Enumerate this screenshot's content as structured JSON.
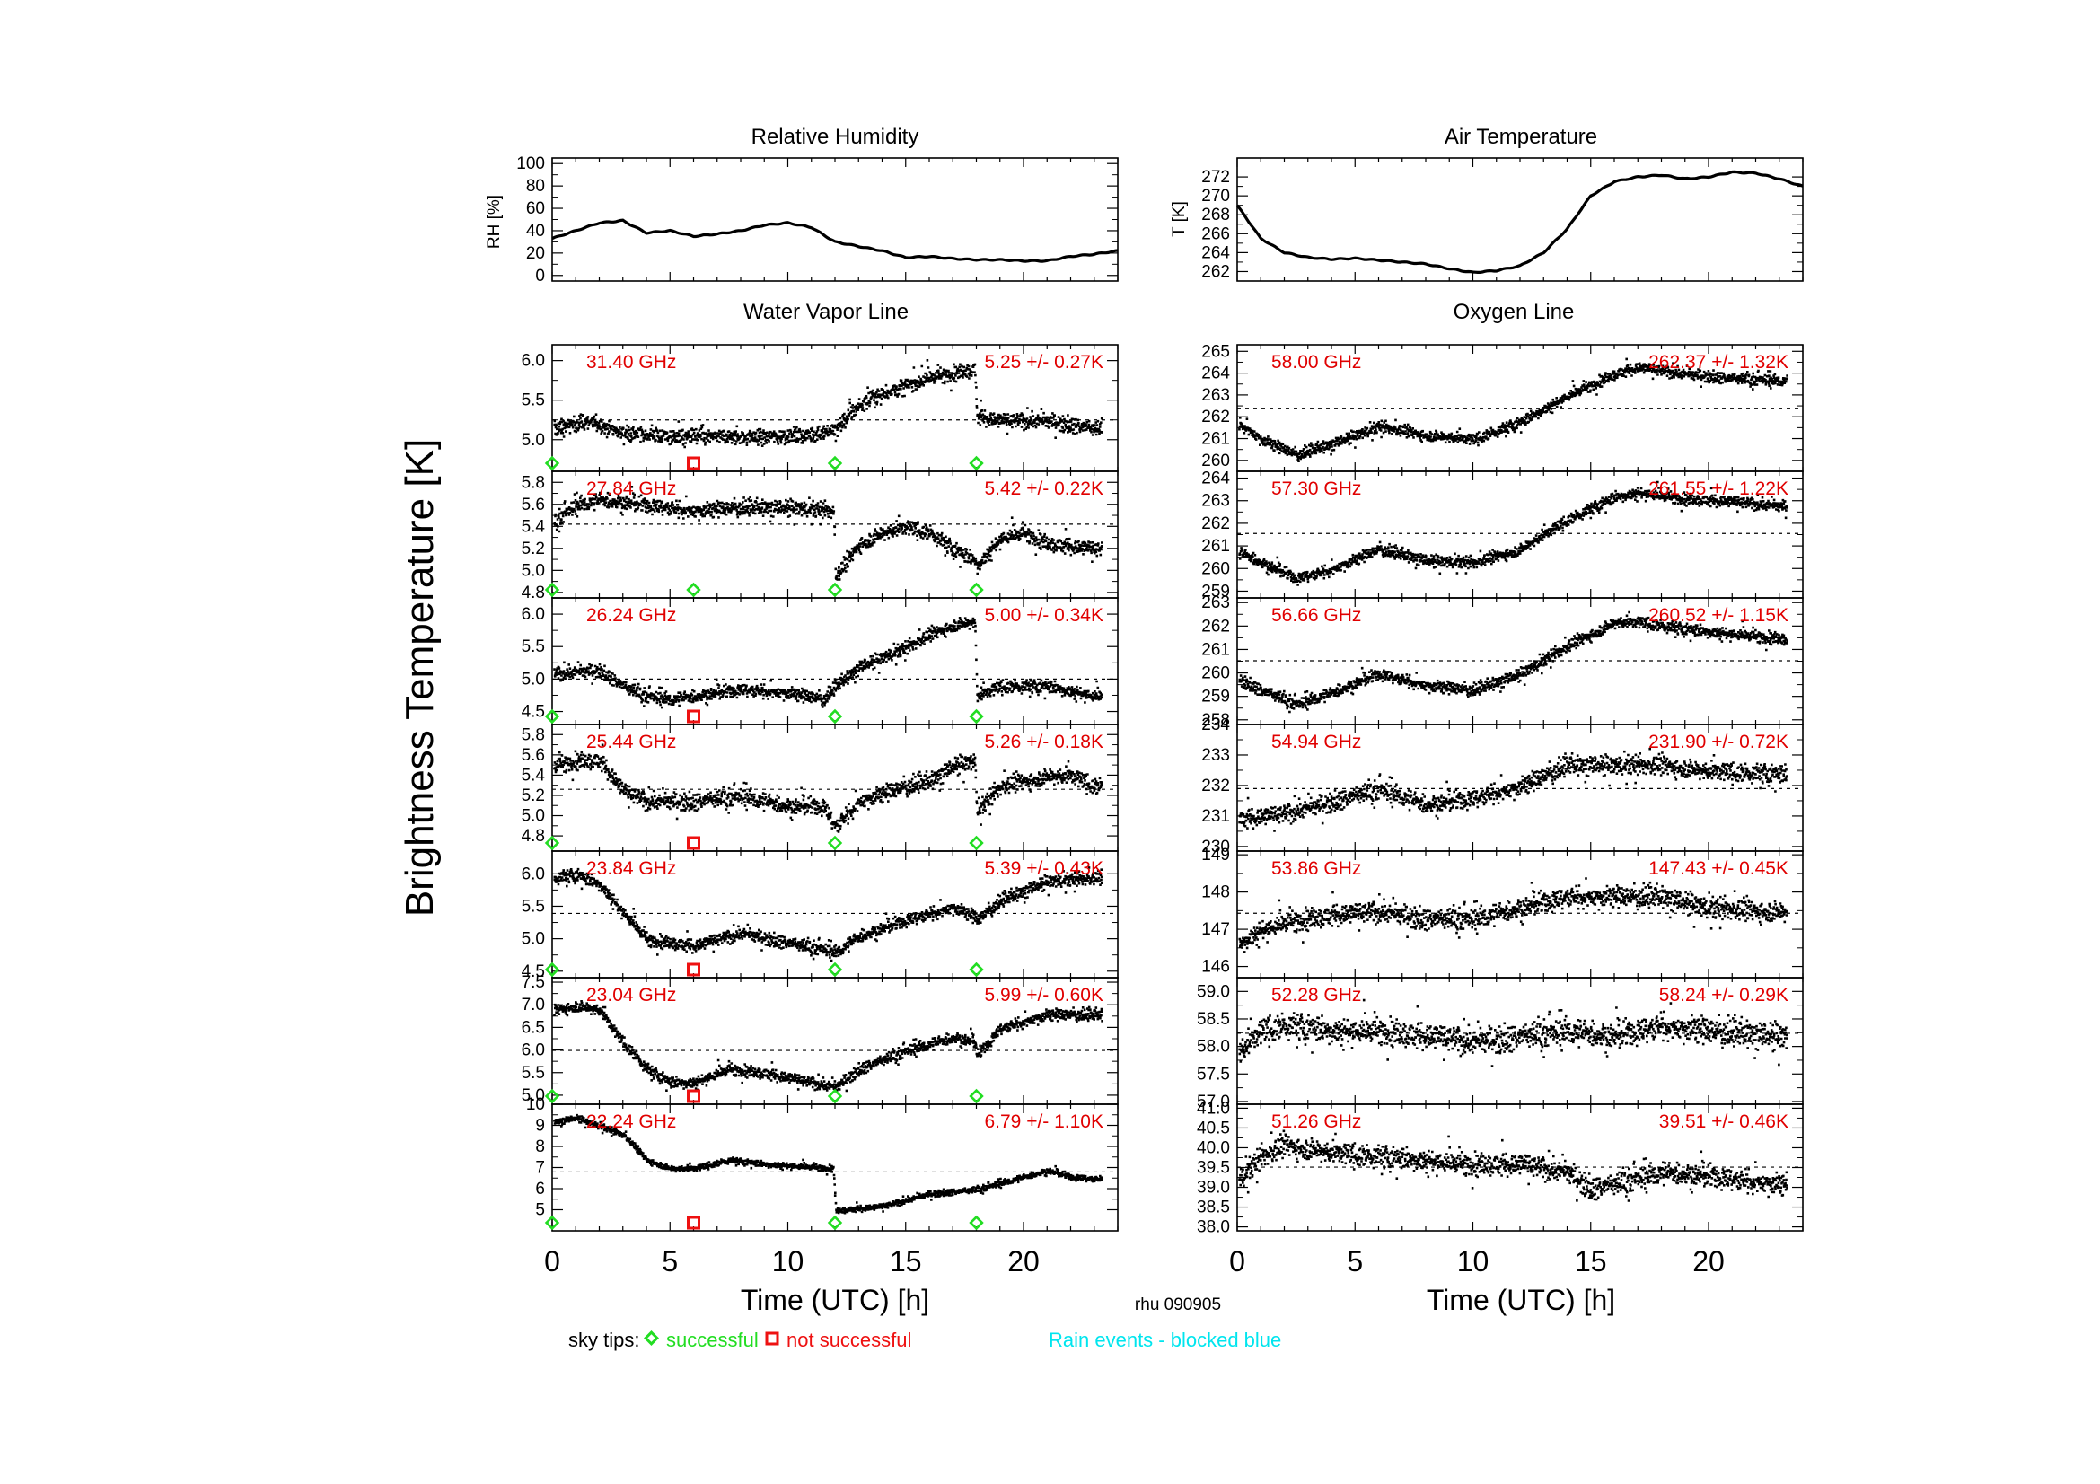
{
  "station_label": "rhu 090905",
  "y_axis_label": "Brightness Temperature [K]",
  "x_axis": {
    "label": "Time (UTC) [h]",
    "range": [
      0,
      24
    ],
    "ticks": [
      0,
      5,
      10,
      15,
      20
    ]
  },
  "legend": {
    "sky_tips_label": "sky tips:",
    "successful_label": "successful",
    "not_successful_label": "not successful",
    "rain_label": "Rain events - blocked blue",
    "successful_color": "#22dd22",
    "not_successful_color": "#ee1111",
    "rain_color": "#00e5ee"
  },
  "colors": {
    "annotation": "#e00000",
    "data": "#000000"
  },
  "chart_data": [
    {
      "id": "rh",
      "type": "line",
      "title": "Relative Humidity",
      "ylabel": "RH [%]",
      "ylim": [
        -5,
        105
      ],
      "yticks": [
        0,
        20,
        40,
        60,
        80,
        100
      ],
      "x": [
        0,
        1,
        2,
        3,
        4,
        5,
        6,
        7,
        8,
        9,
        10,
        11,
        12,
        13,
        14,
        15,
        16,
        17,
        18,
        19,
        20,
        21,
        22,
        23,
        24
      ],
      "y": [
        33,
        40,
        47,
        49,
        38,
        40,
        35,
        37,
        40,
        45,
        47,
        43,
        30,
        26,
        22,
        16,
        17,
        15,
        14,
        14,
        13,
        13,
        17,
        19,
        22
      ]
    },
    {
      "id": "t",
      "type": "line",
      "title": "Air Temperature",
      "ylabel": "T [K]",
      "ylim": [
        261,
        274
      ],
      "yticks": [
        262,
        264,
        266,
        268,
        270,
        272
      ],
      "x": [
        0,
        1,
        2,
        3,
        4,
        5,
        6,
        7,
        8,
        9,
        10,
        11,
        12,
        13,
        14,
        15,
        16,
        17,
        18,
        19,
        20,
        21,
        22,
        23,
        24
      ],
      "y": [
        269,
        265.5,
        264,
        263.5,
        263.3,
        263.4,
        263.2,
        263.0,
        262.8,
        262.3,
        261.9,
        262.1,
        262.6,
        264.0,
        266.5,
        270.0,
        271.5,
        272.0,
        272.2,
        271.8,
        272.0,
        272.5,
        272.4,
        271.8,
        271.0
      ]
    },
    {
      "id": "wv1",
      "type": "scatter",
      "group": "Water Vapor Line",
      "freq": "31.40 GHz",
      "stat": "5.25 +/-  0.27K",
      "mean": 5.25,
      "ylim": [
        4.6,
        6.2
      ],
      "yticks": [
        5.0,
        5.5,
        6.0
      ],
      "tick_dec": 1,
      "x": [
        0,
        1.5,
        3,
        5,
        7,
        9,
        11,
        12,
        13,
        14,
        15,
        16,
        17,
        17.9,
        18,
        19,
        21,
        23
      ],
      "y": [
        5.15,
        5.25,
        5.1,
        5.05,
        5.05,
        5.05,
        5.08,
        5.15,
        5.45,
        5.6,
        5.7,
        5.8,
        5.85,
        5.9,
        5.3,
        5.25,
        5.25,
        5.15
      ],
      "noise": 0.07,
      "gaps": [],
      "tips": [
        {
          "x": 0,
          "ok": true
        },
        {
          "x": 6,
          "ok": false
        },
        {
          "x": 12,
          "ok": true
        },
        {
          "x": 18,
          "ok": true
        }
      ]
    },
    {
      "id": "wv2",
      "type": "scatter",
      "group": "Water Vapor Line",
      "freq": "27.84 GHz",
      "stat": "5.42 +/-  0.22K",
      "mean": 5.42,
      "ylim": [
        4.75,
        5.9
      ],
      "yticks": [
        4.8,
        5.0,
        5.2,
        5.4,
        5.6,
        5.8
      ],
      "tick_dec": 1,
      "x": [
        0,
        1,
        2,
        4,
        6,
        8,
        10,
        11.9,
        12,
        13,
        14,
        15,
        16,
        17,
        17.9,
        18,
        19,
        20,
        21,
        23
      ],
      "y": [
        5.45,
        5.6,
        5.65,
        5.6,
        5.55,
        5.58,
        5.58,
        5.55,
        4.95,
        5.25,
        5.35,
        5.4,
        5.35,
        5.2,
        5.1,
        5.05,
        5.3,
        5.35,
        5.25,
        5.2
      ],
      "noise": 0.05,
      "gaps": [],
      "tips": [
        {
          "x": 0,
          "ok": true
        },
        {
          "x": 6,
          "ok": true
        },
        {
          "x": 12,
          "ok": true
        },
        {
          "x": 18,
          "ok": true
        }
      ]
    },
    {
      "id": "wv3",
      "type": "scatter",
      "group": "Water Vapor Line",
      "freq": "26.24 GHz",
      "stat": "5.00 +/-  0.34K",
      "mean": 5.0,
      "ylim": [
        4.3,
        6.25
      ],
      "yticks": [
        4.5,
        5.0,
        5.5,
        6.0
      ],
      "tick_dec": 1,
      "x": [
        0,
        2,
        3,
        4,
        5,
        6,
        8,
        10,
        11.5,
        12,
        13,
        15,
        16,
        17,
        17.9,
        18,
        19,
        21,
        23
      ],
      "y": [
        5.1,
        5.15,
        4.9,
        4.75,
        4.7,
        4.75,
        4.85,
        4.8,
        4.7,
        4.9,
        5.2,
        5.5,
        5.7,
        5.85,
        5.9,
        4.75,
        4.9,
        4.9,
        4.75
      ],
      "noise": 0.07,
      "gaps": [],
      "tips": [
        {
          "x": 0,
          "ok": true
        },
        {
          "x": 6,
          "ok": false
        },
        {
          "x": 12,
          "ok": true
        },
        {
          "x": 18,
          "ok": true
        }
      ]
    },
    {
      "id": "wv4",
      "type": "scatter",
      "group": "Water Vapor Line",
      "freq": "25.44 GHz",
      "stat": "5.26 +/-  0.18K",
      "mean": 5.26,
      "ylim": [
        4.65,
        5.9
      ],
      "yticks": [
        4.8,
        5.0,
        5.2,
        5.4,
        5.6,
        5.8
      ],
      "tick_dec": 1,
      "x": [
        0,
        1,
        2,
        3,
        4,
        6,
        8,
        10,
        11.5,
        12,
        13,
        15,
        16,
        17,
        17.9,
        18,
        19,
        21,
        22,
        23
      ],
      "y": [
        5.5,
        5.55,
        5.55,
        5.25,
        5.15,
        5.15,
        5.2,
        5.1,
        5.1,
        4.9,
        5.15,
        5.3,
        5.35,
        5.5,
        5.55,
        5.05,
        5.3,
        5.4,
        5.4,
        5.3
      ],
      "noise": 0.06,
      "gaps": [],
      "tips": [
        {
          "x": 0,
          "ok": true
        },
        {
          "x": 6,
          "ok": false
        },
        {
          "x": 12,
          "ok": true
        },
        {
          "x": 18,
          "ok": true
        }
      ]
    },
    {
      "id": "wv5",
      "type": "scatter",
      "group": "Water Vapor Line",
      "freq": "23.84 GHz",
      "stat": "5.39 +/-  0.43K",
      "mean": 5.39,
      "ylim": [
        4.4,
        6.35
      ],
      "yticks": [
        4.5,
        5.0,
        5.5,
        6.0
      ],
      "tick_dec": 1,
      "x": [
        0,
        1,
        2,
        2.8,
        4,
        6,
        8,
        10,
        11.5,
        12,
        13,
        15,
        17,
        17.9,
        18,
        19,
        21,
        23
      ],
      "y": [
        5.95,
        6.0,
        5.85,
        5.5,
        5.0,
        4.9,
        5.1,
        4.95,
        4.85,
        4.8,
        5.05,
        5.3,
        5.5,
        5.35,
        5.3,
        5.6,
        5.9,
        5.95
      ],
      "noise": 0.07,
      "gaps": [],
      "tips": [
        {
          "x": 0,
          "ok": true
        },
        {
          "x": 6,
          "ok": false
        },
        {
          "x": 12,
          "ok": true
        },
        {
          "x": 18,
          "ok": true
        }
      ]
    },
    {
      "id": "wv6",
      "type": "scatter",
      "group": "Water Vapor Line",
      "freq": "23.04 GHz",
      "stat": "5.99 +/-  0.60K",
      "mean": 5.99,
      "ylim": [
        4.8,
        7.6
      ],
      "yticks": [
        5.0,
        5.5,
        6.0,
        6.5,
        7.0,
        7.5
      ],
      "tick_dec": 1,
      "x": [
        0,
        1,
        2,
        2.8,
        4,
        5,
        6,
        7.5,
        9,
        11,
        12,
        13,
        15,
        17,
        17.9,
        18,
        19,
        21,
        23
      ],
      "y": [
        6.9,
        7.0,
        6.9,
        6.3,
        5.6,
        5.3,
        5.3,
        5.6,
        5.5,
        5.3,
        5.2,
        5.6,
        6.0,
        6.3,
        6.2,
        5.9,
        6.5,
        6.8,
        6.8
      ],
      "noise": 0.09,
      "gaps": [],
      "tips": [
        {
          "x": 0,
          "ok": true
        },
        {
          "x": 6,
          "ok": false
        },
        {
          "x": 12,
          "ok": true
        },
        {
          "x": 18,
          "ok": true
        }
      ]
    },
    {
      "id": "wv7",
      "type": "scatter",
      "group": "Water Vapor Line",
      "freq": "22.24 GHz",
      "stat": "6.79 +/-  1.10K",
      "mean": 6.79,
      "ylim": [
        4.0,
        10.0
      ],
      "yticks": [
        5,
        6,
        7,
        8,
        9,
        10
      ],
      "tick_dec": 0,
      "x": [
        0,
        1,
        2,
        3,
        4,
        5,
        6,
        7.5,
        9,
        11.9,
        12,
        14,
        16,
        18,
        20,
        21,
        22,
        23
      ],
      "y": [
        9.2,
        9.4,
        9.0,
        8.6,
        7.4,
        7.0,
        7.0,
        7.4,
        7.2,
        7.0,
        5.0,
        5.2,
        5.8,
        6.0,
        6.6,
        6.9,
        6.6,
        6.5
      ],
      "noise": 0.1,
      "gaps": [],
      "tips": [
        {
          "x": 0,
          "ok": true
        },
        {
          "x": 6,
          "ok": false
        },
        {
          "x": 12,
          "ok": true
        },
        {
          "x": 18,
          "ok": true
        }
      ]
    },
    {
      "id": "ox1",
      "type": "scatter",
      "group": "Oxygen Line",
      "freq": "58.00 GHz",
      "stat": "262.37 +/-  1.32K",
      "mean": 262.37,
      "ylim": [
        259.5,
        265.3
      ],
      "yticks": [
        260,
        261,
        262,
        263,
        264,
        265
      ],
      "tick_dec": 0,
      "x": [
        0,
        1,
        2.5,
        4,
        6,
        8,
        10,
        12,
        14,
        16,
        17,
        19,
        21,
        23
      ],
      "y": [
        261.8,
        261.0,
        260.3,
        260.8,
        261.6,
        261.2,
        261.0,
        261.8,
        263.0,
        264.0,
        264.3,
        264.0,
        263.8,
        263.7
      ],
      "noise": 0.18,
      "gaps": [],
      "tips": []
    },
    {
      "id": "ox2",
      "type": "scatter",
      "group": "Oxygen Line",
      "freq": "57.30 GHz",
      "stat": "261.55 +/-  1.22K",
      "mean": 261.55,
      "ylim": [
        258.7,
        264.3
      ],
      "yticks": [
        259,
        260,
        261,
        262,
        263,
        264
      ],
      "tick_dec": 0,
      "x": [
        0,
        1,
        2.5,
        4,
        6,
        8,
        10,
        12,
        14,
        16,
        17,
        19,
        21,
        23
      ],
      "y": [
        260.8,
        260.3,
        259.6,
        260.0,
        260.9,
        260.4,
        260.3,
        260.9,
        262.2,
        263.2,
        263.4,
        263.1,
        263.0,
        262.8
      ],
      "noise": 0.18,
      "gaps": [],
      "tips": []
    },
    {
      "id": "ox3",
      "type": "scatter",
      "group": "Oxygen Line",
      "freq": "56.66 GHz",
      "stat": "260.52 +/-  1.15K",
      "mean": 260.52,
      "ylim": [
        257.8,
        263.2
      ],
      "yticks": [
        258,
        259,
        260,
        261,
        262,
        263
      ],
      "tick_dec": 0,
      "x": [
        0,
        1,
        2.5,
        4,
        6,
        8,
        10,
        12,
        14,
        16,
        17,
        19,
        21,
        23
      ],
      "y": [
        259.8,
        259.3,
        258.7,
        259.2,
        260.0,
        259.5,
        259.3,
        260.0,
        261.2,
        262.2,
        262.2,
        261.9,
        261.7,
        261.5
      ],
      "noise": 0.18,
      "gaps": [],
      "tips": []
    },
    {
      "id": "ox4",
      "type": "scatter",
      "group": "Oxygen Line",
      "freq": "54.94 GHz",
      "stat": "231.90 +/-  0.72K",
      "mean": 231.9,
      "ylim": [
        229.85,
        234.0
      ],
      "yticks": [
        230,
        231,
        232,
        233,
        234
      ],
      "tick_dec": 0,
      "x": [
        0,
        2,
        4,
        6,
        8,
        10,
        12,
        14,
        16,
        18,
        20,
        23
      ],
      "y": [
        230.9,
        231.1,
        231.5,
        231.9,
        231.4,
        231.6,
        232.0,
        232.7,
        232.7,
        232.7,
        232.5,
        232.4
      ],
      "noise": 0.22,
      "gaps": [],
      "tips": []
    },
    {
      "id": "ox5",
      "type": "scatter",
      "group": "Oxygen Line",
      "freq": "53.86 GHz",
      "stat": "147.43 +/-  0.45K",
      "mean": 147.43,
      "ylim": [
        145.7,
        149.1
      ],
      "yticks": [
        146,
        147,
        148,
        149
      ],
      "tick_dec": 0,
      "x": [
        0,
        1,
        2,
        4,
        6,
        8,
        10,
        12,
        14,
        16,
        18,
        20,
        23
      ],
      "y": [
        146.6,
        147.0,
        147.2,
        147.4,
        147.5,
        147.3,
        147.3,
        147.6,
        147.9,
        147.9,
        147.9,
        147.6,
        147.5
      ],
      "noise": 0.2,
      "gaps": [],
      "tips": []
    },
    {
      "id": "ox6",
      "type": "scatter",
      "group": "Oxygen Line",
      "freq": "52.28 GHz",
      "stat": "58.24 +/-  0.29K",
      "mean": 58.24,
      "ylim": [
        56.95,
        59.25
      ],
      "yticks": [
        57.0,
        57.5,
        58.0,
        58.5,
        59.0
      ],
      "tick_dec": 1,
      "x": [
        0,
        1,
        2,
        4,
        6,
        8,
        10,
        12,
        14,
        16,
        18,
        20,
        23
      ],
      "y": [
        57.9,
        58.3,
        58.4,
        58.3,
        58.3,
        58.2,
        58.1,
        58.2,
        58.3,
        58.2,
        58.4,
        58.3,
        58.2
      ],
      "noise": 0.17,
      "gaps": [],
      "tips": []
    },
    {
      "id": "ox7",
      "type": "scatter",
      "group": "Oxygen Line",
      "freq": "51.26 GHz",
      "stat": "39.51 +/-  0.46K",
      "mean": 39.51,
      "ylim": [
        37.9,
        41.1
      ],
      "yticks": [
        38.0,
        38.5,
        39.0,
        39.5,
        40.0,
        40.5,
        41.0
      ],
      "tick_dec": 1,
      "x": [
        0,
        1,
        2,
        4,
        6,
        8,
        10,
        12,
        14,
        15,
        16,
        18,
        20,
        23
      ],
      "y": [
        39.2,
        39.8,
        40.1,
        39.9,
        39.8,
        39.7,
        39.6,
        39.6,
        39.4,
        39.0,
        39.1,
        39.4,
        39.3,
        39.1
      ],
      "noise": 0.2,
      "gaps": [],
      "tips": []
    }
  ]
}
